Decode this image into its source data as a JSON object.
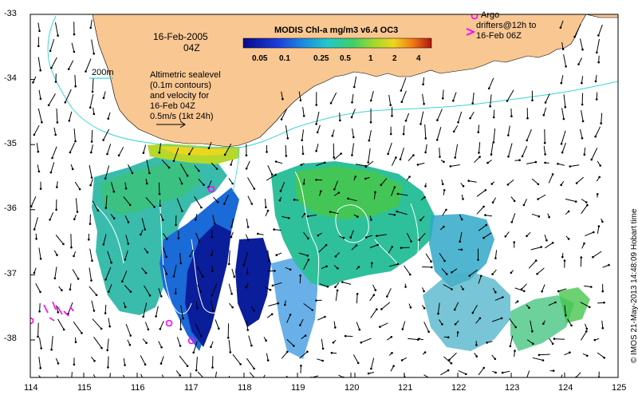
{
  "map": {
    "date": "16-Feb-2005",
    "time": "04Z",
    "colorbar_title": "MODIS Chl-a mg/m3 v6.4 OC3",
    "colorbar_ticks": [
      "0.05",
      "0.1",
      "0.25",
      "0.5",
      "1",
      "2",
      "4"
    ],
    "isobath_label": "200m",
    "legend_lines": [
      "Altimetric sealevel",
      "(0.1m contours)",
      "and velocity for",
      "16-Feb 04Z",
      "0.5m/s (1kt 24h)"
    ],
    "argo_lines": [
      "Argo",
      "drifters@12h to",
      "16-Feb 06Z"
    ],
    "credit": "© IMOS 21-May-2013 14:48:09 Hobart time",
    "lon_ticks": [
      "114",
      "115",
      "116",
      "117",
      "118",
      "119",
      "120",
      "121",
      "122",
      "123",
      "124",
      "125"
    ],
    "lat_ticks": [
      "-33",
      "-34",
      "-35",
      "-36",
      "-37",
      "-38"
    ],
    "colors": {
      "land": "#f9c792",
      "isobath": "#3ad6d6",
      "argo": "#ff00ff",
      "contour": "#ffffff"
    }
  }
}
